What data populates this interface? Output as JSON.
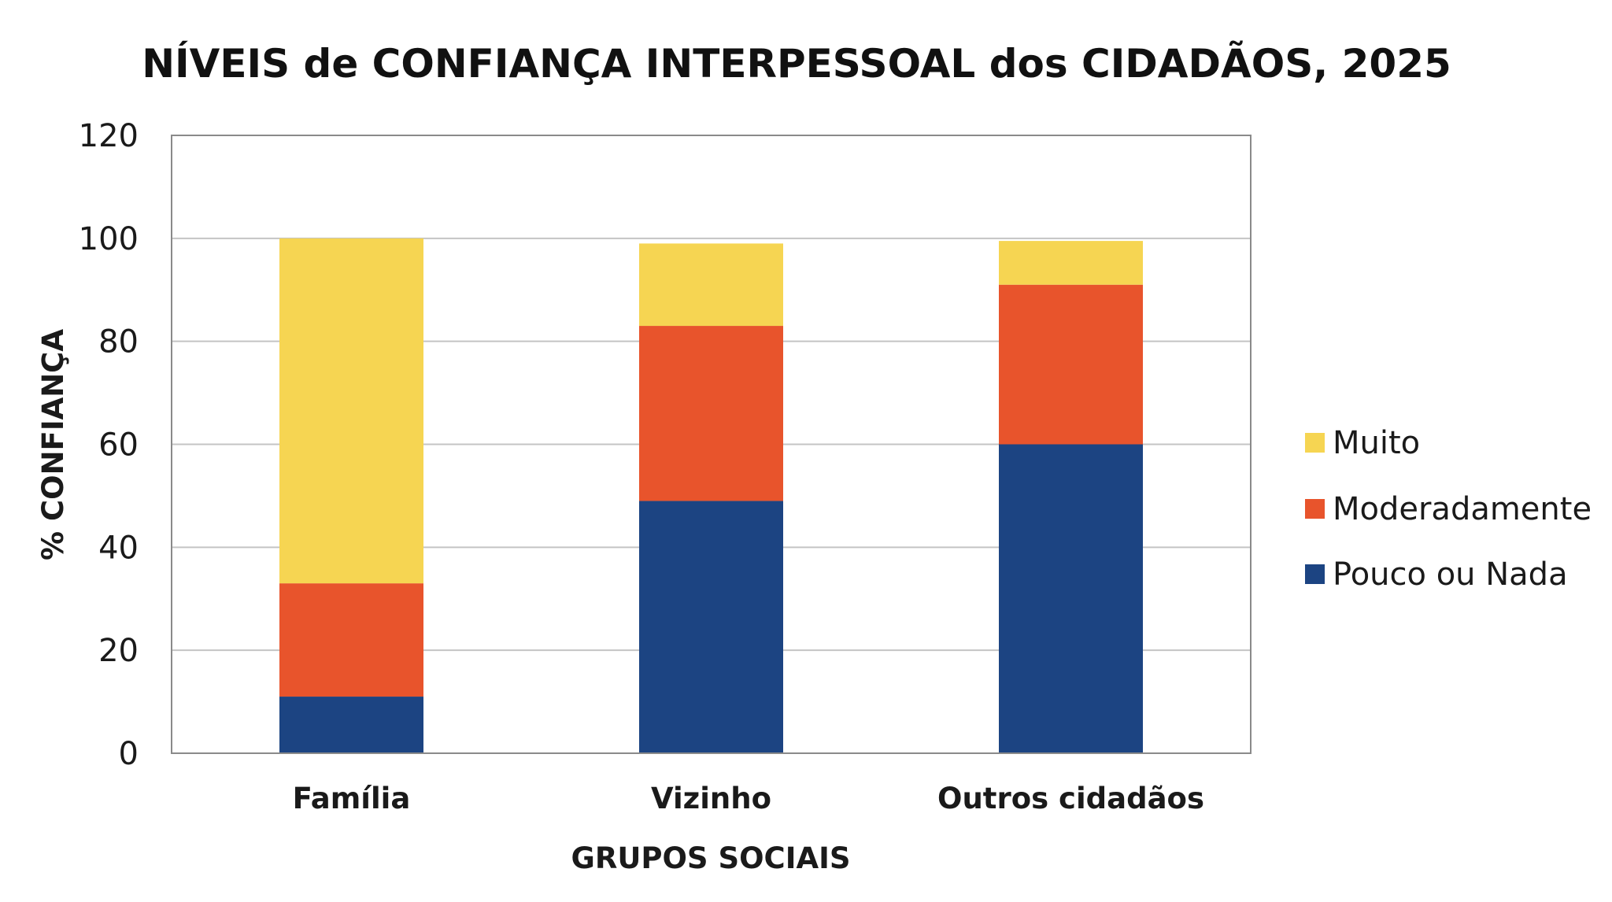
{
  "chart_data": {
    "type": "bar",
    "stacked": true,
    "title": "NÍVEIS de CONFIANÇA INTERPESSOAL dos CIDADÃOS, 2025",
    "xlabel": "GRUPOS SOCIAIS",
    "ylabel": "% CONFIANÇA",
    "categories": [
      "Família",
      "Vizinho",
      "Outros cidadãos"
    ],
    "series": [
      {
        "name": "Pouco ou Nada",
        "color": "#1c4482",
        "values": [
          11,
          49,
          60
        ]
      },
      {
        "name": "Moderadamente",
        "color": "#e8542c",
        "values": [
          22,
          34,
          31
        ]
      },
      {
        "name": "Muito",
        "color": "#f6d552",
        "values": [
          67,
          16,
          8.5
        ]
      }
    ],
    "legend_order": [
      "Muito",
      "Moderadamente",
      "Pouco ou Nada"
    ],
    "ylim": [
      0,
      120
    ],
    "yticks": [
      0,
      20,
      40,
      60,
      80,
      100,
      120
    ],
    "grid": true,
    "legend_position": "right"
  }
}
